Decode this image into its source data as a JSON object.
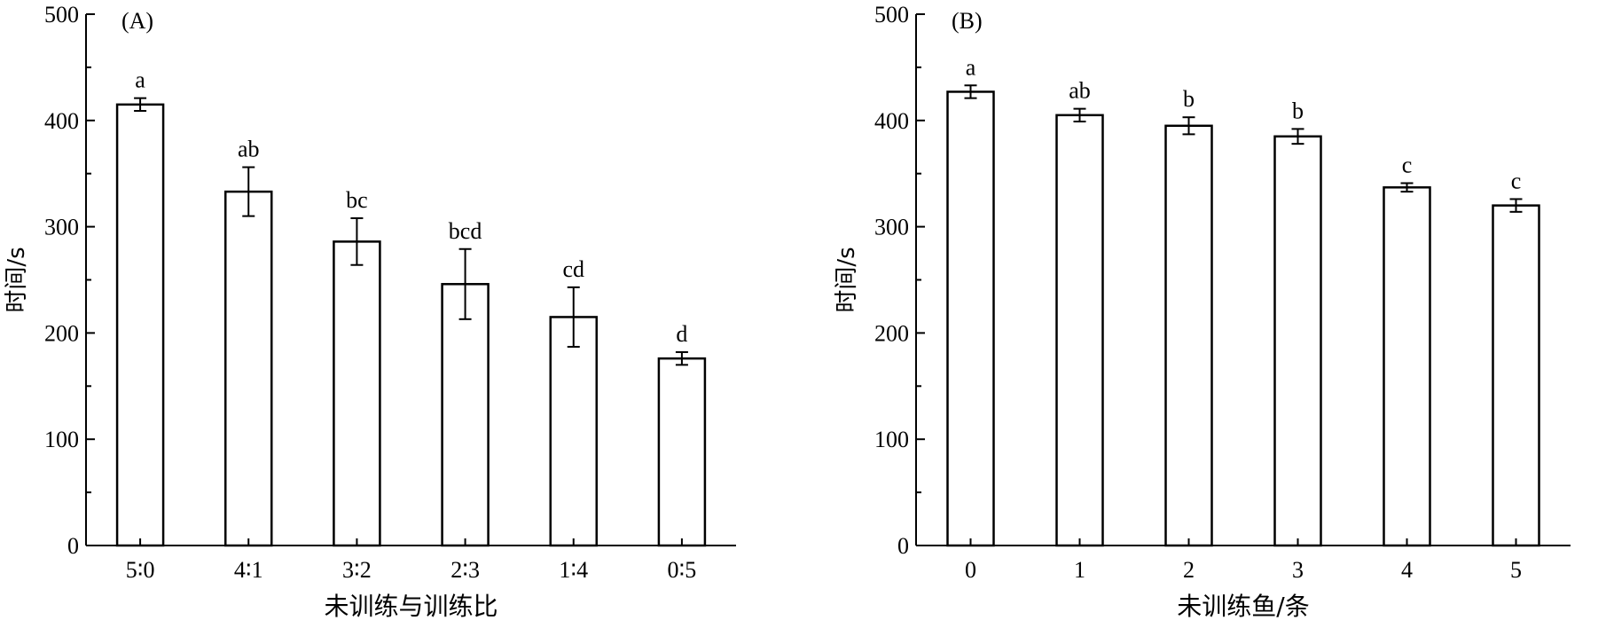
{
  "chart_data": [
    {
      "type": "bar",
      "panel_label": "(A)",
      "ylabel": "时间/s",
      "xlabel": "未训练与训练比",
      "ylim": [
        0,
        500
      ],
      "y_ticks": [
        "0",
        "100",
        "200",
        "300",
        "400",
        "500"
      ],
      "categories": [
        "5∶0",
        "4∶1",
        "3∶2",
        "2∶3",
        "1∶4",
        "0∶5"
      ],
      "values": [
        415,
        333,
        286,
        246,
        215,
        176
      ],
      "errors": [
        6,
        23,
        22,
        33,
        28,
        6
      ],
      "letters": [
        "a",
        "ab",
        "bc",
        "bcd",
        "cd",
        "d"
      ],
      "grid": false,
      "bar_fill": "#ffffff",
      "line_color": "#000000"
    },
    {
      "type": "bar",
      "panel_label": "(B)",
      "ylabel": "时间/s",
      "xlabel": "未训练鱼/条",
      "ylim": [
        0,
        500
      ],
      "y_ticks": [
        "0",
        "100",
        "200",
        "300",
        "400",
        "500"
      ],
      "categories": [
        "0",
        "1",
        "2",
        "3",
        "4",
        "5"
      ],
      "values": [
        427,
        405,
        395,
        385,
        337,
        320
      ],
      "errors": [
        6,
        6,
        8,
        7,
        4,
        6
      ],
      "letters": [
        "a",
        "ab",
        "b",
        "b",
        "c",
        "c"
      ],
      "grid": false,
      "bar_fill": "#ffffff",
      "line_color": "#000000"
    }
  ]
}
